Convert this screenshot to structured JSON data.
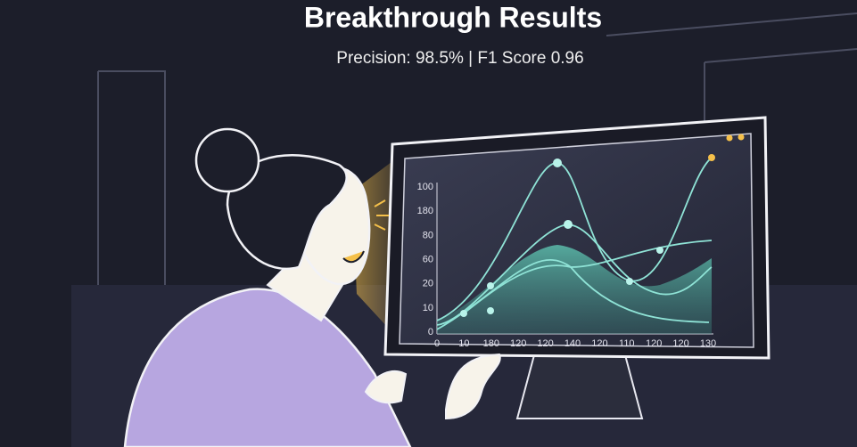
{
  "header": {
    "title": "Breakthrough Results",
    "subtitle": "Precision: 98.5% | F1 Score 0.96"
  },
  "screen": {
    "y_labels": [
      "100",
      "180",
      "80",
      "60",
      "20",
      "10",
      "0"
    ],
    "x_labels": [
      "0",
      "10",
      "180",
      "120",
      "120",
      "140",
      "120",
      "110",
      "120",
      "120",
      "130"
    ]
  }
}
